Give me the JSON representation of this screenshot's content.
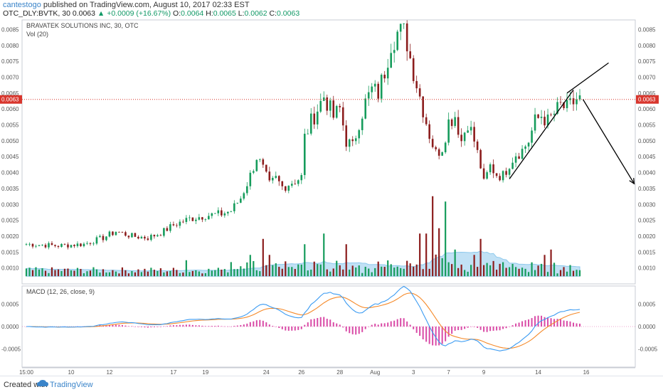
{
  "header": {
    "author": "cantestogo",
    "published_text": "published on TradingView.com, August 10, 2017 02:33 EST",
    "symbol": "OTC_DLY:BVTK, 30",
    "last": "0.0063",
    "change": "▲ +0.0009 (+16.67%)",
    "open_label": "O:",
    "open": "0.0064",
    "high_label": "H:",
    "high": "0.0065",
    "low_label": "L:",
    "low": "0.0062",
    "close_label": "C:",
    "close": "0.0063"
  },
  "footer": {
    "created_with": "Created with",
    "brand": "TradingView"
  },
  "chart_data": {
    "type": "candlestick",
    "title": "BRAVATEK SOLUTIONS INC, 30, OTC",
    "volume_label": "Vol (20)",
    "macd_label": "MACD (12, 26, close, 9)",
    "price_ylim": [
      0.0005,
      0.0088
    ],
    "price_ticks": [
      "0.0085",
      "0.0080",
      "0.0075",
      "0.0070",
      "0.0065",
      "0.0060",
      "0.0055",
      "0.0050",
      "0.0045",
      "0.0040",
      "0.0035",
      "0.0030",
      "0.0025",
      "0.0020",
      "0.0015",
      "0.0010"
    ],
    "price_tick_values": [
      0.0085,
      0.008,
      0.0075,
      0.007,
      0.0065,
      0.006,
      0.0055,
      0.005,
      0.0045,
      0.004,
      0.0035,
      0.003,
      0.0025,
      0.002,
      0.0015,
      0.001
    ],
    "last_price": 0.0063,
    "last_price_label": "0.0063",
    "macd_ylim": [
      -0.0009,
      0.0009
    ],
    "macd_ticks": [
      "0.0005",
      "0.0000",
      "-0.0005"
    ],
    "macd_tick_values": [
      0.0005,
      0,
      -0.0005
    ],
    "x_labels": [
      "15:00",
      "10",
      "12",
      "17",
      "19",
      "24",
      "26",
      "28",
      "Aug",
      "3",
      "7",
      "9",
      "14",
      "16"
    ],
    "x_label_index": [
      0,
      14,
      26,
      46,
      56,
      75,
      86,
      98,
      109,
      121,
      132,
      143,
      160,
      175
    ],
    "x_count": 190,
    "close_path": [
      [
        0,
        0.00175
      ],
      [
        10,
        0.0017
      ],
      [
        18,
        0.00175
      ],
      [
        24,
        0.00195
      ],
      [
        28,
        0.00215
      ],
      [
        33,
        0.002
      ],
      [
        38,
        0.00195
      ],
      [
        42,
        0.0021
      ],
      [
        46,
        0.00235
      ],
      [
        51,
        0.00255
      ],
      [
        56,
        0.00265
      ],
      [
        61,
        0.0027
      ],
      [
        64,
        0.0028
      ],
      [
        67,
        0.0032
      ],
      [
        70,
        0.0039
      ],
      [
        72,
        0.0045
      ],
      [
        74,
        0.0041
      ],
      [
        76,
        0.0036
      ],
      [
        78,
        0.0038
      ],
      [
        80,
        0.00355
      ],
      [
        83,
        0.0037
      ],
      [
        86,
        0.00385
      ],
      [
        87,
        0.0051
      ],
      [
        89,
        0.0056
      ],
      [
        91,
        0.006
      ],
      [
        93,
        0.0064
      ],
      [
        94,
        0.0062
      ],
      [
        96,
        0.00575
      ],
      [
        98,
        0.006
      ],
      [
        100,
        0.005
      ],
      [
        102,
        0.0048
      ],
      [
        104,
        0.0056
      ],
      [
        106,
        0.0062
      ],
      [
        108,
        0.0066
      ],
      [
        110,
        0.0065
      ],
      [
        112,
        0.0072
      ],
      [
        114,
        0.0081
      ],
      [
        116,
        0.0084
      ],
      [
        118,
        0.0084
      ],
      [
        119,
        0.0081
      ],
      [
        120,
        0.0076
      ],
      [
        122,
        0.0068
      ],
      [
        124,
        0.006
      ],
      [
        126,
        0.0052
      ],
      [
        128,
        0.0046
      ],
      [
        130,
        0.0048
      ],
      [
        132,
        0.0056
      ],
      [
        134,
        0.0058
      ],
      [
        136,
        0.005
      ],
      [
        138,
        0.0056
      ],
      [
        140,
        0.005
      ],
      [
        142,
        0.0042
      ],
      [
        143,
        0.00365
      ],
      [
        145,
        0.0042
      ],
      [
        147,
        0.00395
      ],
      [
        149,
        0.0039
      ],
      [
        151,
        0.0043
      ],
      [
        153,
        0.0046
      ],
      [
        155,
        0.0047
      ],
      [
        157,
        0.005
      ],
      [
        159,
        0.0056
      ],
      [
        161,
        0.0058
      ],
      [
        163,
        0.0056
      ],
      [
        165,
        0.00585
      ],
      [
        167,
        0.0061
      ],
      [
        169,
        0.006
      ],
      [
        171,
        0.0062
      ],
      [
        172,
        0.0063
      ],
      [
        173,
        0.0063
      ]
    ],
    "candle_count": 174,
    "volume_spikes": [
      [
        127,
        0.0015
      ],
      [
        125,
        0.0008
      ],
      [
        129,
        0.0009
      ],
      [
        131,
        0.0014
      ],
      [
        123,
        0.0008
      ],
      [
        134,
        0.0005
      ],
      [
        142,
        0.0007
      ],
      [
        93,
        0.0008
      ],
      [
        87,
        0.0006
      ],
      [
        76,
        0.0004
      ],
      [
        70,
        0.0004
      ],
      [
        74,
        0.0007
      ],
      [
        100,
        0.0006
      ],
      [
        50,
        0.0003
      ],
      [
        140,
        0.0004
      ],
      [
        162,
        0.0004
      ],
      [
        164,
        0.0005
      ]
    ],
    "annotations": [
      {
        "type": "trend_line",
        "from": [
          151,
          0.0038
        ],
        "to": [
          171,
          0.0066
        ]
      },
      {
        "type": "line",
        "from": [
          169,
          0.0065
        ],
        "to": [
          182,
          0.00745
        ]
      },
      {
        "type": "arrow",
        "from": [
          174,
          0.0063
        ],
        "to": [
          190,
          0.00365
        ]
      }
    ],
    "colors": {
      "up": "#169c5c",
      "down": "#8c1d1d",
      "volume_ma": "#8ec9ec",
      "macd": "#3b9bf2",
      "signal": "#f58a2a",
      "hist": "#d94aa6",
      "last_price": "#d8362d"
    }
  }
}
